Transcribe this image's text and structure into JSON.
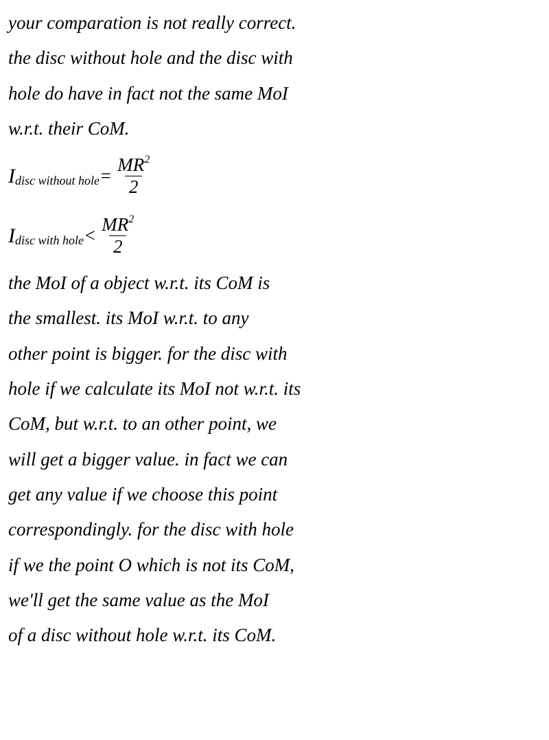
{
  "lines": {
    "l1": "your comparation is not really correct.",
    "l2": "the disc without hole and the disc with",
    "l3": "hole do have in fact not the same MoI",
    "l4": "w.r.t. their CoM.",
    "l5": "the MoI of a object w.r.t. its CoM is",
    "l6": "the smallest. its MoI w.r.t. to any",
    "l7": "other point is bigger. for the disc with",
    "l8": "hole if we calculate its MoI not w.r.t. its",
    "l9": "CoM, but w.r.t. to an other point, we",
    "l10": "will get a bigger value. in fact we can",
    "l11": "get any value if we choose this point",
    "l12": "correspondingly. for the disc with hole",
    "l13": "if we the point O which is not its CoM,",
    "l14": "we'll get the same value as the MoI",
    "l15": "of a disc without hole w.r.t. its CoM."
  },
  "formula1": {
    "var": "I",
    "sub": "disc without hole",
    "op": "=",
    "num_m": "MR",
    "num_exp": "2",
    "den": "2"
  },
  "formula2": {
    "var": "I",
    "sub": "disc with hole",
    "op": "<",
    "num_m": "MR",
    "num_exp": "2",
    "den": "2"
  },
  "style": {
    "text_color": "#000000",
    "background_color": "#ffffff",
    "font_family": "Georgia, Times New Roman, serif",
    "font_style": "italic",
    "font_size_body": 27,
    "font_size_sub": 18,
    "font_size_sup": 16,
    "line_height": 1.9
  }
}
